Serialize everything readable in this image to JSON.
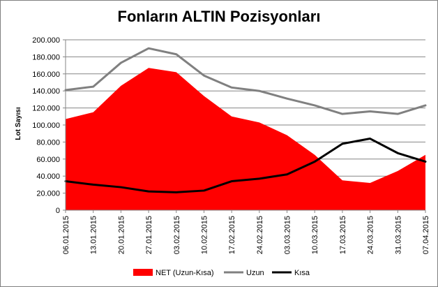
{
  "chart_data": {
    "type": "area",
    "title": "Fonların ALTIN Pozisyonları",
    "ylabel": "Lot Sayısı",
    "xlabel": "",
    "ylim": [
      0,
      200000
    ],
    "yticks": [
      0,
      20000,
      40000,
      60000,
      80000,
      100000,
      120000,
      140000,
      160000,
      180000,
      200000
    ],
    "ytick_labels": [
      "0",
      "20.000",
      "40.000",
      "60.000",
      "80.000",
      "100.000",
      "120.000",
      "140.000",
      "160.000",
      "180.000",
      "200.000"
    ],
    "grid": true,
    "legend_position": "bottom",
    "categories": [
      "06.01.2015",
      "13.01.2015",
      "20.01.2015",
      "27.01.2015",
      "03.02.2015",
      "10.02.2015",
      "17.02.2015",
      "24.02.2015",
      "03.03.2015",
      "10.03.2015",
      "17.03.2015",
      "24.03.2015",
      "31.03.2015",
      "07.04.2015"
    ],
    "series": [
      {
        "name": "NET (Uzun-Kısa)",
        "kind": "area",
        "color": "#ff0000",
        "values": [
          107000,
          115000,
          146000,
          167000,
          162000,
          134000,
          110000,
          103000,
          88000,
          65000,
          35000,
          32000,
          46000,
          65000
        ]
      },
      {
        "name": "Uzun",
        "kind": "line",
        "color": "#808080",
        "values": [
          141000,
          145000,
          173000,
          190000,
          183000,
          158000,
          144000,
          140000,
          131000,
          123000,
          113000,
          116000,
          113000,
          123000
        ]
      },
      {
        "name": "Kısa",
        "kind": "line",
        "color": "#000000",
        "values": [
          34000,
          30000,
          27000,
          22000,
          21000,
          23000,
          34000,
          37000,
          42000,
          57000,
          78000,
          84000,
          67000,
          57000
        ]
      }
    ]
  }
}
